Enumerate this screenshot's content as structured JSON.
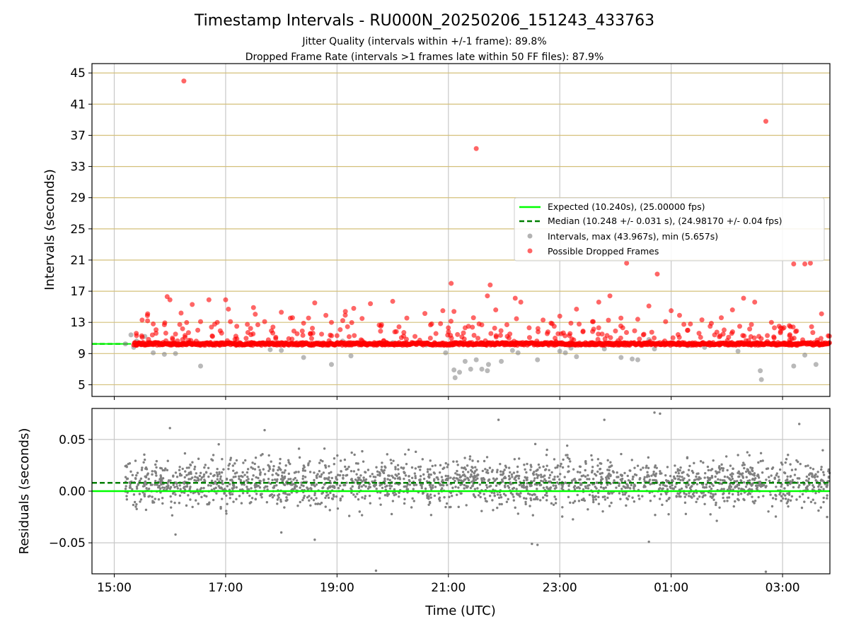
{
  "chart_data": [
    {
      "type": "scatter",
      "title": "Timestamp Intervals - RU000N_20250206_151243_433763",
      "subtitle_lines": [
        "Jitter Quality (intervals within +/-1 frame): 89.8%",
        "Dropped Frame Rate (intervals >1 frames late within 50 FF files): 87.9%"
      ],
      "xlabel": "",
      "ylabel": "Intervals (seconds)",
      "xlim_hours": [
        14.6,
        27.85
      ],
      "ylim": [
        3.5,
        46.2
      ],
      "yticks": [
        5,
        9,
        13,
        17,
        21,
        25,
        29,
        33,
        37,
        41,
        45
      ],
      "xticks_hours": [
        15,
        17,
        19,
        21,
        23,
        25,
        27
      ],
      "grid": true,
      "legend_position": "center-right",
      "series": [
        {
          "name": "Expected (10.240s), (25.00000 fps)",
          "kind": "hline",
          "y": 10.24,
          "color": "#00ff00"
        },
        {
          "name": "Median (10.248 +/- 0.031 s), (24.98170 +/- 0.04 fps)",
          "kind": "hline-dashed",
          "y": 10.248,
          "color": "#007f00"
        },
        {
          "name": "Intervals, max (43.967s), min (5.657s)",
          "kind": "scatter",
          "color": "#808080",
          "points": [
            [
              15.2,
              10.24
            ],
            [
              15.3,
              11.4
            ],
            [
              15.35,
              9.8
            ],
            [
              15.4,
              10.6
            ],
            [
              15.55,
              11.2
            ],
            [
              15.7,
              9.1
            ],
            [
              15.9,
              8.9
            ],
            [
              16.1,
              9.0
            ],
            [
              16.55,
              7.4
            ],
            [
              17.2,
              10.1
            ],
            [
              17.8,
              9.5
            ],
            [
              18.0,
              9.4
            ],
            [
              18.4,
              8.5
            ],
            [
              18.9,
              7.6
            ],
            [
              19.1,
              10.6
            ],
            [
              19.25,
              8.7
            ],
            [
              19.5,
              10.2
            ],
            [
              20.0,
              10.4
            ],
            [
              20.6,
              10.1
            ],
            [
              20.95,
              9.1
            ],
            [
              21.1,
              6.9
            ],
            [
              21.12,
              5.9
            ],
            [
              21.2,
              6.6
            ],
            [
              21.3,
              8.0
            ],
            [
              21.4,
              7.0
            ],
            [
              21.5,
              8.2
            ],
            [
              21.6,
              7.0
            ],
            [
              21.7,
              6.8
            ],
            [
              21.72,
              7.6
            ],
            [
              21.95,
              8.0
            ],
            [
              22.15,
              9.4
            ],
            [
              22.25,
              9.1
            ],
            [
              22.6,
              8.2
            ],
            [
              23.0,
              9.3
            ],
            [
              23.1,
              9.1
            ],
            [
              23.2,
              9.7
            ],
            [
              23.3,
              8.6
            ],
            [
              23.8,
              9.6
            ],
            [
              24.1,
              8.5
            ],
            [
              24.3,
              8.3
            ],
            [
              24.4,
              8.2
            ],
            [
              24.6,
              10.8
            ],
            [
              24.7,
              9.6
            ],
            [
              25.3,
              10.0
            ],
            [
              25.6,
              9.8
            ],
            [
              26.2,
              9.3
            ],
            [
              26.6,
              6.8
            ],
            [
              26.62,
              5.66
            ],
            [
              27.2,
              7.4
            ],
            [
              27.4,
              8.8
            ],
            [
              27.6,
              7.6
            ]
          ]
        },
        {
          "name": "Possible Dropped Frames",
          "kind": "scatter",
          "color": "#ff0000",
          "band": {
            "from_hours": 15.35,
            "to_hours": 27.85,
            "y": 10.24
          },
          "points": [
            [
              15.4,
              11.3
            ],
            [
              15.5,
              13.3
            ],
            [
              15.6,
              14.1
            ],
            [
              15.7,
              12.8
            ],
            [
              15.75,
              11.6
            ],
            [
              15.9,
              12.7
            ],
            [
              15.95,
              16.3
            ],
            [
              16.0,
              15.9
            ],
            [
              16.1,
              11.5
            ],
            [
              16.2,
              14.2
            ],
            [
              16.25,
              43.97
            ],
            [
              16.4,
              15.3
            ],
            [
              16.5,
              12.0
            ],
            [
              16.55,
              13.1
            ],
            [
              16.7,
              15.9
            ],
            [
              16.85,
              13.0
            ],
            [
              17.0,
              15.9
            ],
            [
              17.05,
              14.7
            ],
            [
              17.2,
              12.5
            ],
            [
              17.4,
              11.7
            ],
            [
              17.5,
              14.9
            ],
            [
              17.7,
              13.1
            ],
            [
              17.85,
              12.4
            ],
            [
              18.0,
              14.3
            ],
            [
              18.2,
              13.6
            ],
            [
              18.4,
              12.9
            ],
            [
              18.6,
              15.5
            ],
            [
              18.8,
              13.9
            ],
            [
              18.9,
              13.0
            ],
            [
              19.0,
              11.3
            ],
            [
              19.15,
              14.4
            ],
            [
              19.3,
              14.8
            ],
            [
              19.45,
              13.5
            ],
            [
              19.6,
              15.4
            ],
            [
              19.8,
              12.7
            ],
            [
              20.0,
              15.7
            ],
            [
              20.2,
              11.7
            ],
            [
              20.4,
              11.2
            ],
            [
              20.7,
              12.8
            ],
            [
              20.9,
              14.5
            ],
            [
              21.05,
              18.0
            ],
            [
              21.1,
              14.4
            ],
            [
              21.3,
              12.3
            ],
            [
              21.45,
              13.6
            ],
            [
              21.5,
              35.3
            ],
            [
              21.55,
              12.8
            ],
            [
              21.7,
              16.4
            ],
            [
              21.75,
              17.8
            ],
            [
              21.85,
              14.6
            ],
            [
              22.05,
              12.7
            ],
            [
              22.2,
              16.1
            ],
            [
              22.3,
              15.6
            ],
            [
              22.45,
              12.3
            ],
            [
              22.7,
              13.3
            ],
            [
              22.9,
              12.5
            ],
            [
              23.0,
              13.8
            ],
            [
              23.2,
              12.9
            ],
            [
              23.3,
              14.7
            ],
            [
              23.6,
              13.1
            ],
            [
              23.7,
              15.6
            ],
            [
              23.9,
              16.4
            ],
            [
              24.0,
              11.9
            ],
            [
              24.2,
              20.6
            ],
            [
              24.4,
              13.4
            ],
            [
              24.5,
              11.4
            ],
            [
              24.6,
              15.1
            ],
            [
              24.75,
              19.2
            ],
            [
              24.9,
              13.1
            ],
            [
              25.0,
              14.5
            ],
            [
              25.15,
              13.9
            ],
            [
              25.3,
              12.0
            ],
            [
              25.5,
              11.6
            ],
            [
              25.7,
              12.5
            ],
            [
              25.9,
              13.6
            ],
            [
              26.1,
              14.6
            ],
            [
              26.3,
              16.1
            ],
            [
              26.5,
              15.6
            ],
            [
              26.7,
              38.8
            ],
            [
              26.8,
              13.0
            ],
            [
              27.0,
              12.2
            ],
            [
              27.2,
              20.5
            ],
            [
              27.4,
              20.5
            ],
            [
              27.5,
              20.6
            ],
            [
              27.7,
              14.1
            ]
          ]
        }
      ]
    },
    {
      "type": "scatter",
      "xlabel": "Time (UTC)",
      "ylabel": "Residuals (seconds)",
      "xlim_hours": [
        14.6,
        27.85
      ],
      "ylim": [
        -0.08,
        0.08
      ],
      "yticks": [
        0.05,
        0.0,
        -0.05
      ],
      "ytick_labels": [
        "0.05",
        "0.00",
        "−0.05"
      ],
      "xticks_hours": [
        15,
        17,
        19,
        21,
        23,
        25,
        27
      ],
      "xtick_labels": [
        "15:00",
        "17:00",
        "19:00",
        "21:00",
        "23:00",
        "01:00",
        "03:00"
      ],
      "grid": true,
      "series": [
        {
          "kind": "hline",
          "y": 0.0,
          "color": "#00ff00"
        },
        {
          "kind": "hline-dashed",
          "y": 0.008,
          "color": "#007f00"
        },
        {
          "kind": "scatter",
          "color": "#808080",
          "range_hours": [
            15.2,
            27.85
          ],
          "typical_spread": 0.015,
          "extremes": [
            [
              16.0,
              0.061
            ],
            [
              16.1,
              -0.042
            ],
            [
              17.7,
              0.059
            ],
            [
              18.0,
              -0.04
            ],
            [
              18.6,
              -0.047
            ],
            [
              19.7,
              -0.077
            ],
            [
              21.9,
              0.069
            ],
            [
              22.5,
              -0.051
            ],
            [
              22.6,
              -0.052
            ],
            [
              23.8,
              0.069
            ],
            [
              24.7,
              0.076
            ],
            [
              24.8,
              0.075
            ],
            [
              24.6,
              -0.049
            ],
            [
              26.7,
              -0.078
            ],
            [
              27.3,
              0.065
            ],
            [
              27.8,
              -0.025
            ]
          ]
        }
      ]
    }
  ]
}
